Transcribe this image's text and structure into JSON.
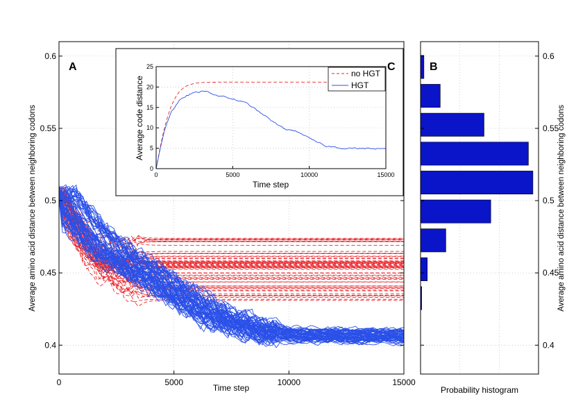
{
  "chart_data": [
    {
      "panel": "A",
      "type": "line",
      "label": "A",
      "xlabel": "Time step",
      "ylabel": "Average amino acid distance between neighboring codons",
      "xlim": [
        0,
        15000
      ],
      "ylim": [
        0.38,
        0.61
      ],
      "xticks": [
        0,
        5000,
        10000,
        15000
      ],
      "xtick_labels": [
        "0",
        "5000",
        "10000",
        "15000"
      ],
      "yticks": [
        0.4,
        0.45,
        0.5,
        0.55,
        0.6
      ],
      "ytick_labels": [
        "0.4",
        "0.45",
        "0.5",
        "0.55",
        "0.6"
      ],
      "grid": true,
      "series": [
        {
          "name": "HGT",
          "style": "solid",
          "color": "#2a50e8",
          "count": 60,
          "start": 0.505,
          "final_min": 0.401,
          "final_max": 0.411,
          "mean_path": [
            [
              0,
              0.505
            ],
            [
              1000,
              0.485
            ],
            [
              2000,
              0.468
            ],
            [
              3000,
              0.457
            ],
            [
              4000,
              0.447
            ],
            [
              5000,
              0.437
            ],
            [
              6000,
              0.427
            ],
            [
              7000,
              0.418
            ],
            [
              8000,
              0.412
            ],
            [
              9000,
              0.408
            ],
            [
              10000,
              0.406
            ],
            [
              12000,
              0.405
            ],
            [
              15000,
              0.405
            ]
          ]
        },
        {
          "name": "no HGT",
          "style": "dashed",
          "color": "#e8242a",
          "count": 60,
          "start": 0.505,
          "final_min": 0.429,
          "final_max": 0.476,
          "mean_path": [
            [
              0,
              0.505
            ],
            [
              500,
              0.49
            ],
            [
              1000,
              0.475
            ],
            [
              1500,
              0.465
            ],
            [
              2000,
              0.458
            ],
            [
              2500,
              0.455
            ],
            [
              3000,
              0.454
            ],
            [
              15000,
              0.454
            ]
          ]
        }
      ]
    },
    {
      "panel": "B",
      "type": "bar",
      "orientation": "horizontal",
      "label": "B",
      "xlabel": "Probability histogram",
      "ylabel": "Average amino acid distance between neighboring codons",
      "ylim": [
        0.38,
        0.61
      ],
      "yticks": [
        0.4,
        0.45,
        0.5,
        0.55,
        0.6
      ],
      "ytick_labels": [
        "0.4",
        "0.45",
        "0.5",
        "0.55",
        "0.6"
      ],
      "xlim": [
        0,
        0.21
      ],
      "grid": true,
      "bar_color": "#0a14c8",
      "bins": [
        {
          "center": 0.4325,
          "value": 0.002
        },
        {
          "center": 0.4525,
          "value": 0.012
        },
        {
          "center": 0.4725,
          "value": 0.045
        },
        {
          "center": 0.4925,
          "value": 0.125
        },
        {
          "center": 0.5125,
          "value": 0.2
        },
        {
          "center": 0.5325,
          "value": 0.192
        },
        {
          "center": 0.5525,
          "value": 0.113
        },
        {
          "center": 0.5725,
          "value": 0.035
        },
        {
          "center": 0.5925,
          "value": 0.006
        }
      ]
    },
    {
      "panel": "C",
      "type": "line",
      "label": "C",
      "xlabel": "Time step",
      "ylabel": "Average code distance",
      "xlim": [
        0,
        15000
      ],
      "ylim": [
        0,
        25
      ],
      "xticks": [
        0,
        5000,
        10000,
        15000
      ],
      "xtick_labels": [
        "0",
        "5000",
        "10000",
        "15000"
      ],
      "yticks": [
        0,
        5,
        10,
        15,
        20,
        25
      ],
      "ytick_labels": [
        "0",
        "5",
        "10",
        "15",
        "20",
        "25"
      ],
      "grid": true,
      "legend": {
        "position": "top-right",
        "entries": [
          "no HGT",
          "HGT"
        ]
      },
      "series": [
        {
          "name": "no HGT",
          "style": "dashed",
          "color": "#e8242a",
          "points": [
            [
              0,
              0
            ],
            [
              250,
              5
            ],
            [
              500,
              9.3
            ],
            [
              750,
              12.8
            ],
            [
              1000,
              15.5
            ],
            [
              1250,
              17.4
            ],
            [
              1500,
              18.8
            ],
            [
              1750,
              19.7
            ],
            [
              2000,
              20.3
            ],
            [
              2500,
              20.9
            ],
            [
              3000,
              21.1
            ],
            [
              4000,
              21.2
            ],
            [
              15000,
              21.2
            ]
          ]
        },
        {
          "name": "HGT",
          "style": "solid",
          "color": "#2a50e8",
          "points": [
            [
              0,
              0
            ],
            [
              250,
              4.8
            ],
            [
              500,
              8.8
            ],
            [
              750,
              11.8
            ],
            [
              1000,
              14
            ],
            [
              1500,
              16.5
            ],
            [
              2000,
              17.9
            ],
            [
              2500,
              18.6
            ],
            [
              3000,
              18.9
            ],
            [
              3500,
              18.6
            ],
            [
              4000,
              18
            ],
            [
              5000,
              17.1
            ],
            [
              6000,
              15.8
            ],
            [
              7000,
              13.2
            ],
            [
              8000,
              10.5
            ],
            [
              8500,
              9.6
            ],
            [
              9000,
              9.3
            ],
            [
              9500,
              8.7
            ],
            [
              10000,
              7.3
            ],
            [
              11000,
              5.6
            ],
            [
              12000,
              5.1
            ],
            [
              13000,
              5
            ],
            [
              14000,
              4.9
            ],
            [
              15000,
              4.8
            ]
          ]
        }
      ]
    }
  ]
}
